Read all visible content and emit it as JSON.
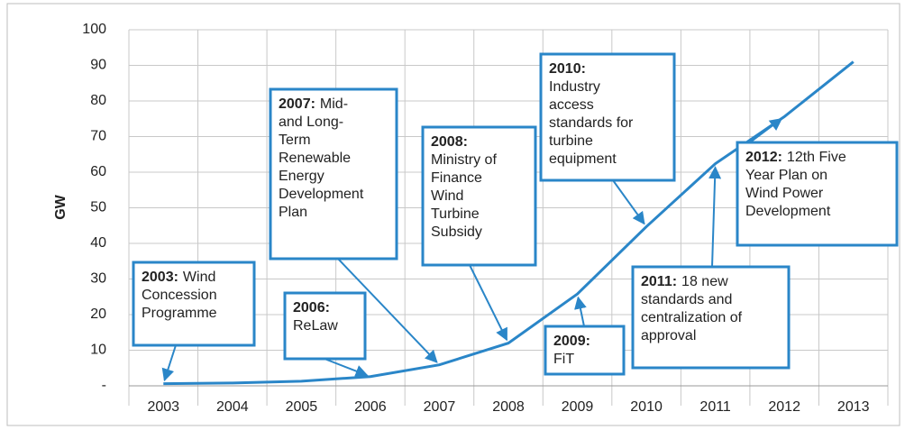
{
  "chart_data": {
    "type": "line",
    "y_label": "GW",
    "categories": [
      "2003",
      "2004",
      "2005",
      "2006",
      "2007",
      "2008",
      "2009",
      "2010",
      "2011",
      "2012",
      "2013"
    ],
    "values": [
      0.6,
      0.8,
      1.3,
      2.6,
      5.9,
      12.0,
      25.8,
      44.7,
      62.4,
      75.6,
      91.0
    ],
    "color": "#2a86c8",
    "ylim": [
      0,
      100
    ],
    "yticks": [
      {
        "value": 0,
        "label": "-"
      },
      10,
      20,
      30,
      40,
      50,
      60,
      70,
      80,
      90,
      100
    ],
    "grid": true,
    "annotations": [
      {
        "label": "2003:",
        "text": [
          "Wind",
          "Concession",
          "Programme"
        ]
      },
      {
        "label": "2006:",
        "text": [
          "ReLaw"
        ]
      },
      {
        "label": "2007:",
        "text": [
          "Mid-",
          "and Long-",
          "Term",
          "Renewable",
          "Energy",
          "Development",
          "Plan"
        ]
      },
      {
        "label": "2008:",
        "text": [
          "Ministry of",
          "Finance",
          "Wind",
          "Turbine",
          "Subsidy"
        ]
      },
      {
        "label": "2009:",
        "text": [
          "FiT"
        ]
      },
      {
        "label": "2010:",
        "text": [
          "Industry",
          "access",
          "standards for",
          "turbine",
          "equipment"
        ]
      },
      {
        "label": "2011:",
        "text": [
          "18 new",
          "standards and",
          "centralization of",
          "approval"
        ]
      },
      {
        "label": "2012:",
        "text": [
          "12th Five",
          "Year Plan on",
          "Wind Power",
          "Development"
        ]
      }
    ]
  }
}
